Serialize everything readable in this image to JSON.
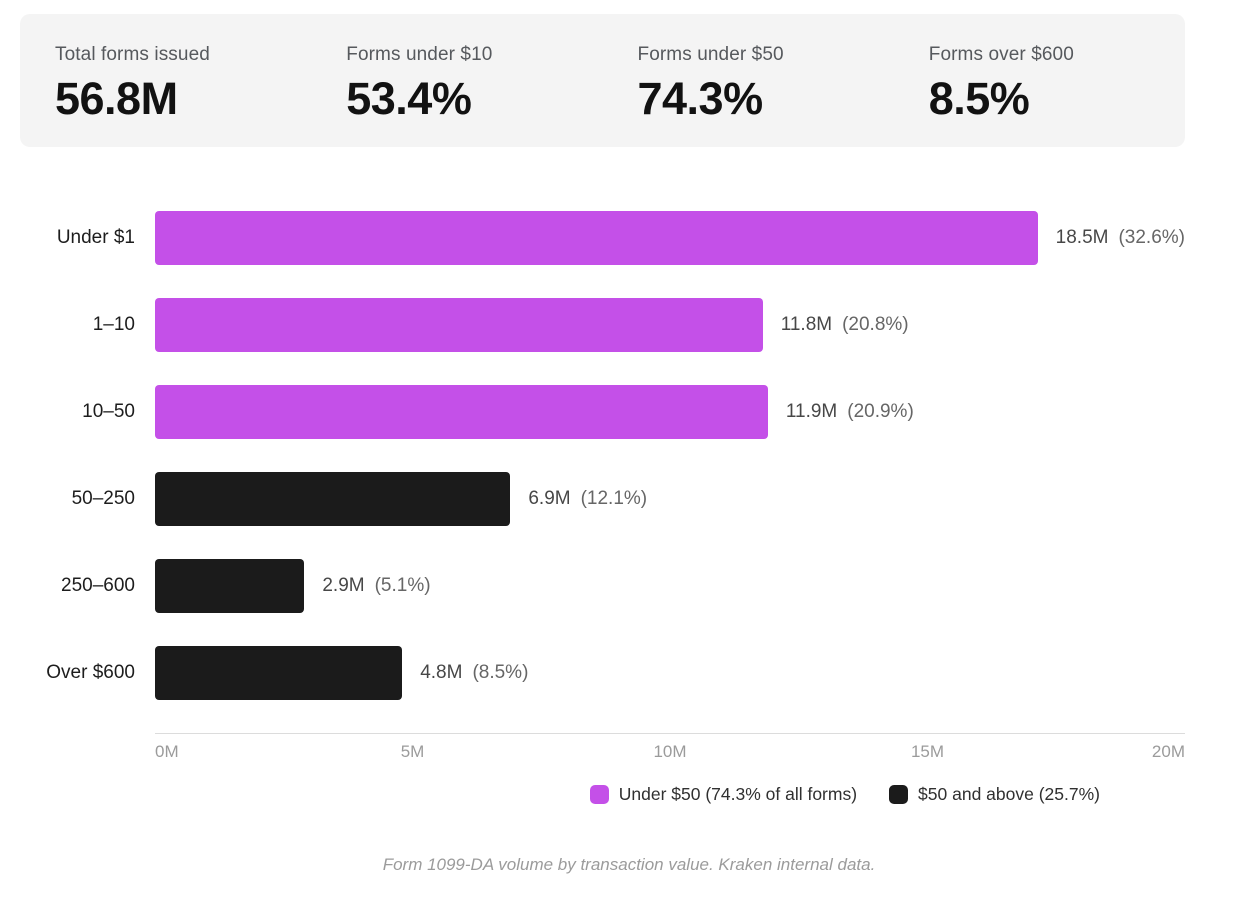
{
  "stats": {
    "items": [
      {
        "label": "Total forms issued",
        "value": "56.8M"
      },
      {
        "label": "Forms under $10",
        "value": "53.4%"
      },
      {
        "label": "Forms under $50",
        "value": "74.3%"
      },
      {
        "label": "Forms over $600",
        "value": "8.5%"
      }
    ]
  },
  "chart_data": {
    "type": "bar",
    "orientation": "horizontal",
    "categories": [
      "Under $1",
      "1–10",
      "10–50",
      "50–250",
      "250–600",
      "Over $600"
    ],
    "values": [
      18.5,
      11.8,
      11.9,
      6.9,
      2.9,
      4.8
    ],
    "unit": "millions of forms",
    "percent_of_total": [
      32.6,
      20.8,
      20.9,
      12.1,
      5.1,
      8.5
    ],
    "value_labels": [
      "18.5M",
      "11.8M",
      "11.9M",
      "6.9M",
      "2.9M",
      "4.8M"
    ],
    "pct_labels": [
      "(32.6%)",
      "(20.8%)",
      "(20.9%)",
      "(12.1%)",
      "(5.1%)",
      "(8.5%)"
    ],
    "series_key": [
      "under50",
      "under50",
      "under50",
      "over50",
      "over50",
      "over50"
    ],
    "xlim": [
      0,
      20
    ],
    "x_ticks": [
      "0M",
      "5M",
      "10M",
      "15M",
      "20M"
    ],
    "grid": false,
    "legend_position": "bottom",
    "legend": [
      {
        "label": "Under $50 (74.3% of all forms)",
        "color_key": "under50"
      },
      {
        "label": "$50 and above (25.7%)",
        "color_key": "over50"
      }
    ],
    "caption": "Form 1099-DA volume by transaction value. Kraken internal data."
  },
  "colors": {
    "under50": "#c450e8",
    "over50": "#1b1b1b",
    "stats_bg": "#f4f4f4",
    "axis_line": "#dcdcdc",
    "tick_text": "#9b9b9b",
    "caption_text": "#9b9b9b"
  }
}
